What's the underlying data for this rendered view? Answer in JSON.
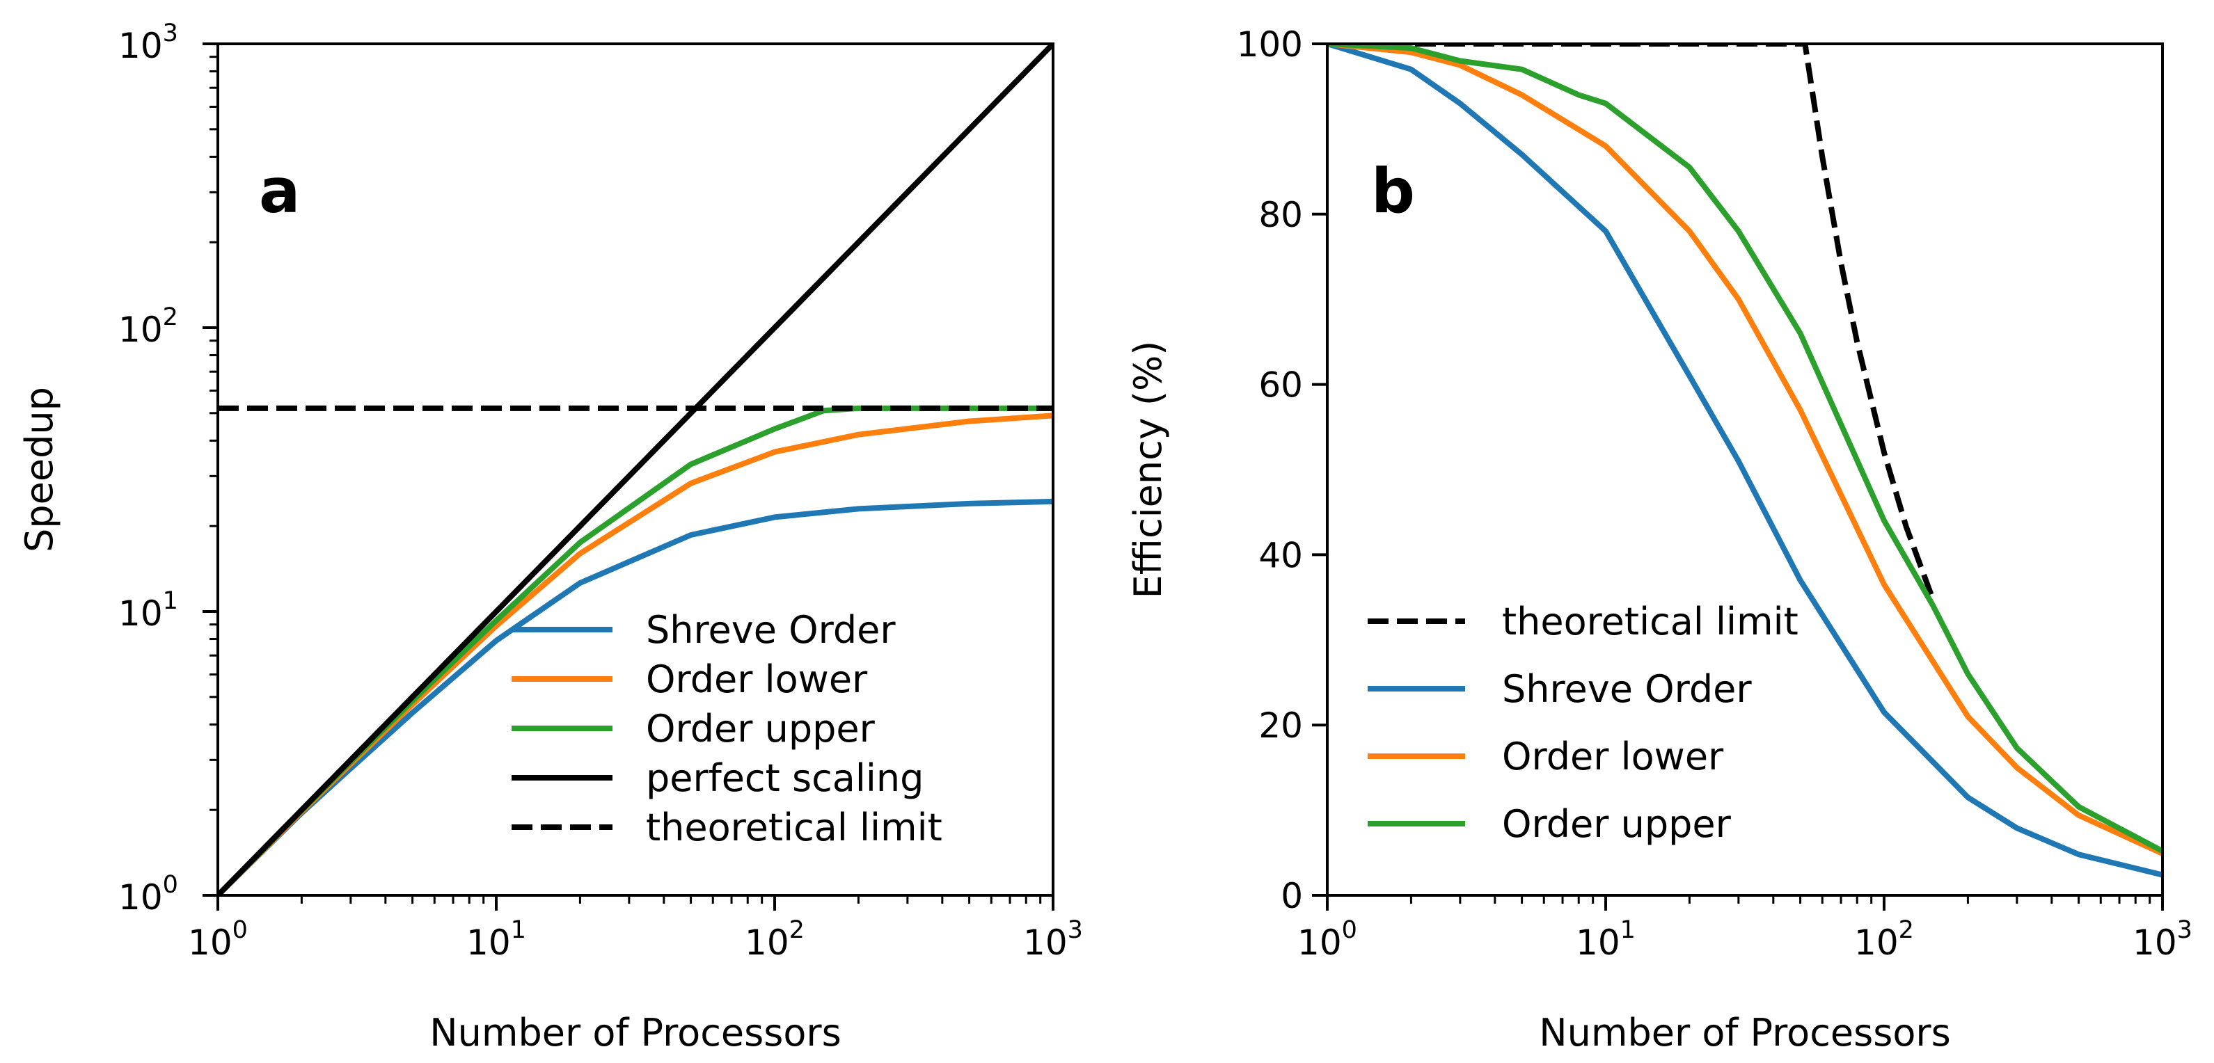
{
  "chart_data": [
    {
      "panel": "a",
      "type": "line",
      "xlabel": "Number of Processors",
      "ylabel": "Speedup",
      "xscale": "log",
      "yscale": "log",
      "xlim": [
        1,
        1000
      ],
      "ylim": [
        1,
        1000
      ],
      "xticks": [
        {
          "base": "10",
          "exp": "0"
        },
        {
          "base": "10",
          "exp": "1"
        },
        {
          "base": "10",
          "exp": "2"
        },
        {
          "base": "10",
          "exp": "3"
        }
      ],
      "yticks": [
        {
          "base": "10",
          "exp": "0"
        },
        {
          "base": "10",
          "exp": "1"
        },
        {
          "base": "10",
          "exp": "2"
        },
        {
          "base": "10",
          "exp": "3"
        }
      ],
      "grid": false,
      "legend_position": "lower-right",
      "legend_order": [
        "Shreve Order",
        "Order lower",
        "Order upper",
        "perfect scaling",
        "theoretical limit"
      ],
      "series": [
        {
          "name": "Shreve Order",
          "color": "#1f77b4",
          "style": "solid",
          "x": [
            1,
            2,
            3,
            5,
            10,
            20,
            50,
            100,
            200,
            500,
            1000
          ],
          "y": [
            1,
            1.95,
            2.8,
            4.4,
            7.9,
            12.6,
            18.6,
            21.5,
            23.0,
            24.0,
            24.4
          ]
        },
        {
          "name": "Order lower",
          "color": "#ff7f0e",
          "style": "solid",
          "x": [
            1,
            2,
            3,
            5,
            10,
            20,
            50,
            100,
            200,
            500,
            1000
          ],
          "y": [
            1,
            1.97,
            2.9,
            4.7,
            8.9,
            16.0,
            28.3,
            36.5,
            42.0,
            46.8,
            49.0
          ]
        },
        {
          "name": "Order upper",
          "color": "#2ca02c",
          "style": "solid",
          "x": [
            1,
            2,
            3,
            5,
            10,
            20,
            50,
            100,
            150,
            200,
            500,
            1000
          ],
          "y": [
            1,
            1.99,
            2.95,
            4.85,
            9.3,
            17.5,
            33.0,
            44.0,
            51.0,
            52.0,
            52.0,
            52.0
          ]
        },
        {
          "name": "perfect scaling",
          "color": "#000000",
          "style": "solid",
          "x": [
            1,
            1000
          ],
          "y": [
            1,
            1000
          ]
        },
        {
          "name": "theoretical limit",
          "color": "#000000",
          "style": "dashed",
          "x": [
            1,
            1000
          ],
          "y": [
            52,
            52
          ]
        }
      ]
    },
    {
      "panel": "b",
      "type": "line",
      "xlabel": "Number of Processors",
      "ylabel": "Efficiency (%)",
      "xscale": "log",
      "yscale": "linear",
      "xlim": [
        1,
        1000
      ],
      "ylim": [
        0,
        100
      ],
      "xticks": [
        {
          "base": "10",
          "exp": "0"
        },
        {
          "base": "10",
          "exp": "1"
        },
        {
          "base": "10",
          "exp": "2"
        },
        {
          "base": "10",
          "exp": "3"
        }
      ],
      "yticks": [
        "0",
        "20",
        "40",
        "60",
        "80",
        "100"
      ],
      "grid": false,
      "legend_position": "lower-left",
      "legend_order": [
        "theoretical limit",
        "Shreve Order",
        "Order lower",
        "Order upper"
      ],
      "series": [
        {
          "name": "theoretical limit",
          "color": "#000000",
          "style": "dashed",
          "x": [
            1,
            52,
            60,
            70,
            80,
            100,
            120,
            150
          ],
          "y": [
            100,
            100,
            86.7,
            74.3,
            65.0,
            52.0,
            43.3,
            34.7
          ]
        },
        {
          "name": "Shreve Order",
          "color": "#1f77b4",
          "style": "solid",
          "x": [
            1,
            2,
            3,
            5,
            10,
            20,
            30,
            50,
            100,
            200,
            300,
            500,
            1000
          ],
          "y": [
            100,
            97,
            93,
            87,
            78,
            61,
            51,
            37,
            21.5,
            11.5,
            7.9,
            4.8,
            2.4
          ]
        },
        {
          "name": "Order lower",
          "color": "#ff7f0e",
          "style": "solid",
          "x": [
            1,
            2,
            3,
            5,
            10,
            20,
            30,
            50,
            100,
            200,
            300,
            500,
            1000
          ],
          "y": [
            100,
            99,
            97.5,
            94,
            88,
            78,
            70,
            57,
            36.5,
            21,
            15,
            9.4,
            4.9
          ]
        },
        {
          "name": "Order upper",
          "color": "#2ca02c",
          "style": "solid",
          "x": [
            1,
            2,
            3,
            5,
            8,
            10,
            20,
            30,
            50,
            100,
            150,
            200,
            300,
            500,
            1000
          ],
          "y": [
            100,
            99.5,
            98,
            97,
            94,
            93,
            85.5,
            78,
            66,
            44,
            34,
            26,
            17.3,
            10.4,
            5.2
          ]
        }
      ]
    }
  ]
}
